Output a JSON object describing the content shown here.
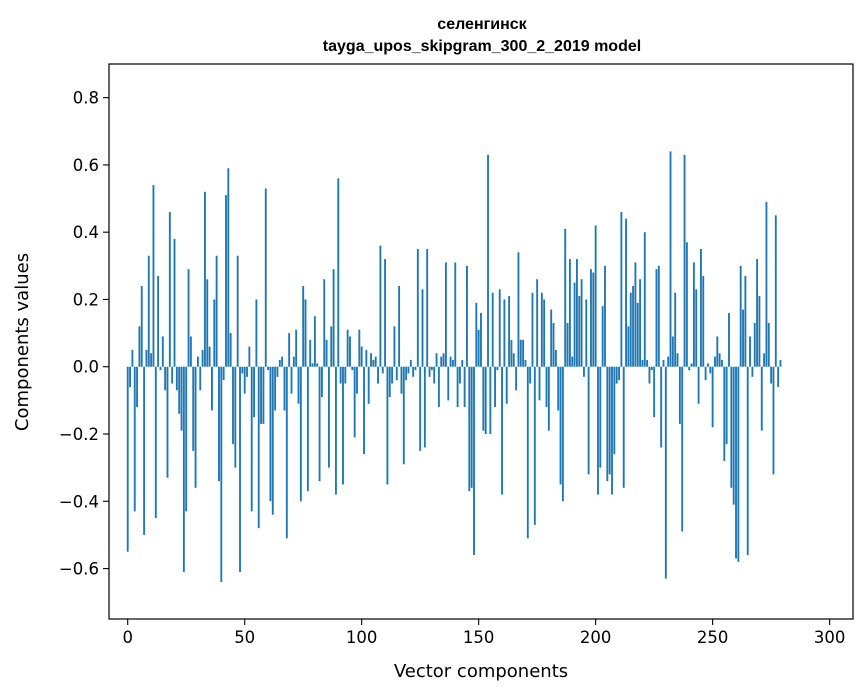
{
  "chart_data": {
    "type": "bar",
    "title": "селенгинск",
    "subtitle": "tayga_upos_skipgram_300_2_2019 model",
    "xlabel": "Vector components",
    "ylabel": "Components values",
    "xlim": [
      -8,
      310
    ],
    "ylim": [
      -0.75,
      0.9
    ],
    "x_ticks": [
      0,
      50,
      100,
      150,
      200,
      250,
      300
    ],
    "x_tick_labels": [
      "0",
      "50",
      "100",
      "150",
      "200",
      "250",
      "300"
    ],
    "y_ticks": [
      -0.6,
      -0.4,
      -0.2,
      0.0,
      0.2,
      0.4,
      0.6,
      0.8
    ],
    "y_tick_labels": [
      "−0.6",
      "−0.4",
      "−0.2",
      "0.0",
      "0.2",
      "0.4",
      "0.6",
      "0.8"
    ],
    "bar_color": "#1f77b4",
    "grid": false,
    "values": [
      -0.55,
      -0.06,
      0.05,
      -0.43,
      -0.12,
      0.12,
      0.24,
      -0.5,
      0.05,
      0.33,
      0.04,
      0.54,
      -0.45,
      0.27,
      -0.01,
      0.09,
      -0.07,
      -0.33,
      0.46,
      -0.05,
      0.38,
      -0.07,
      -0.14,
      -0.19,
      -0.61,
      -0.43,
      0.29,
      0.09,
      -0.25,
      -0.36,
      0.03,
      -0.07,
      0.05,
      0.52,
      0.26,
      0.06,
      -0.13,
      0.2,
      0.33,
      -0.34,
      -0.64,
      -0.04,
      0.51,
      0.59,
      0.1,
      -0.23,
      -0.3,
      0.33,
      -0.61,
      -0.02,
      -0.08,
      -0.03,
      0.06,
      -0.43,
      -0.15,
      0.2,
      -0.48,
      -0.17,
      -0.17,
      0.53,
      -0.01,
      -0.4,
      -0.44,
      -0.13,
      -0.03,
      0.02,
      0.03,
      -0.13,
      -0.51,
      0.1,
      -0.08,
      0.03,
      0.11,
      -0.11,
      -0.4,
      0.24,
      0.2,
      -0.37,
      0.08,
      0.01,
      0.15,
      0.01,
      -0.34,
      -0.09,
      0.26,
      0.08,
      -0.3,
      0.12,
      0.29,
      -0.38,
      0.56,
      -0.05,
      -0.35,
      -0.05,
      0.11,
      0.09,
      -0.01,
      -0.21,
      -0.08,
      0.11,
      0.06,
      -0.26,
      0.05,
      -0.11,
      0.04,
      0.02,
      0.03,
      -0.05,
      0.36,
      -0.02,
      0.32,
      -0.35,
      -0.09,
      -0.05,
      0.12,
      -0.04,
      0.24,
      -0.08,
      -0.29,
      -0.04,
      -0.02,
      0.02,
      -0.03,
      -0.01,
      0.35,
      -0.25,
      0.23,
      -0.24,
      0.35,
      -0.03,
      -0.01,
      -0.05,
      0.04,
      -0.12,
      0.03,
      0.04,
      0.31,
      -0.1,
      0.03,
      0.02,
      0.31,
      -0.12,
      -0.05,
      0.02,
      -0.12,
      0.3,
      -0.37,
      -0.36,
      -0.56,
      0.19,
      0.11,
      0.16,
      -0.19,
      -0.2,
      0.63,
      -0.2,
      0.22,
      -0.12,
      -0.01,
      0.23,
      -0.38,
      0.2,
      -0.11,
      0.21,
      0.08,
      0.04,
      -0.07,
      0.34,
      0.08,
      0.08,
      0.02,
      -0.51,
      -0.05,
      0.22,
      -0.47,
      0.26,
      -0.1,
      0.22,
      0.2,
      -0.12,
      -0.19,
      0.17,
      0.13,
      0.05,
      -0.13,
      -0.35,
      -0.4,
      0.41,
      0.13,
      0.32,
      0.03,
      0.25,
      0.32,
      0.21,
      0.26,
      -0.03,
      0.2,
      -0.32,
      0.29,
      0.28,
      0.42,
      -0.38,
      -0.3,
      0.18,
      0.3,
      -0.34,
      -0.32,
      -0.38,
      -0.26,
      -0.05,
      -0.04,
      0.46,
      -0.36,
      0.44,
      0.12,
      0.22,
      0.24,
      0.31,
      0.19,
      0.26,
      0.02,
      0.4,
      0.02,
      -0.05,
      -0.01,
      -0.15,
      0.29,
      0.3,
      -0.24,
      0.02,
      -0.63,
      0.03,
      0.64,
      0.09,
      0.22,
      0.04,
      -0.17,
      -0.49,
      0.63,
      0.37,
      -0.01,
      0.01,
      0.31,
      0.23,
      -0.11,
      0.35,
      0.27,
      -0.04,
      0.01,
      -0.02,
      -0.18,
      0.03,
      0.09,
      0.04,
      0.02,
      -0.28,
      -0.23,
      0.16,
      -0.36,
      -0.41,
      -0.57,
      -0.58,
      0.3,
      0.17,
      0.27,
      -0.56,
      0.09,
      -0.03,
      0.13,
      0.32,
      0.21,
      -0.19,
      0.04,
      0.49,
      0.13,
      -0.05,
      -0.32,
      0.45,
      -0.06,
      0.02
    ]
  }
}
